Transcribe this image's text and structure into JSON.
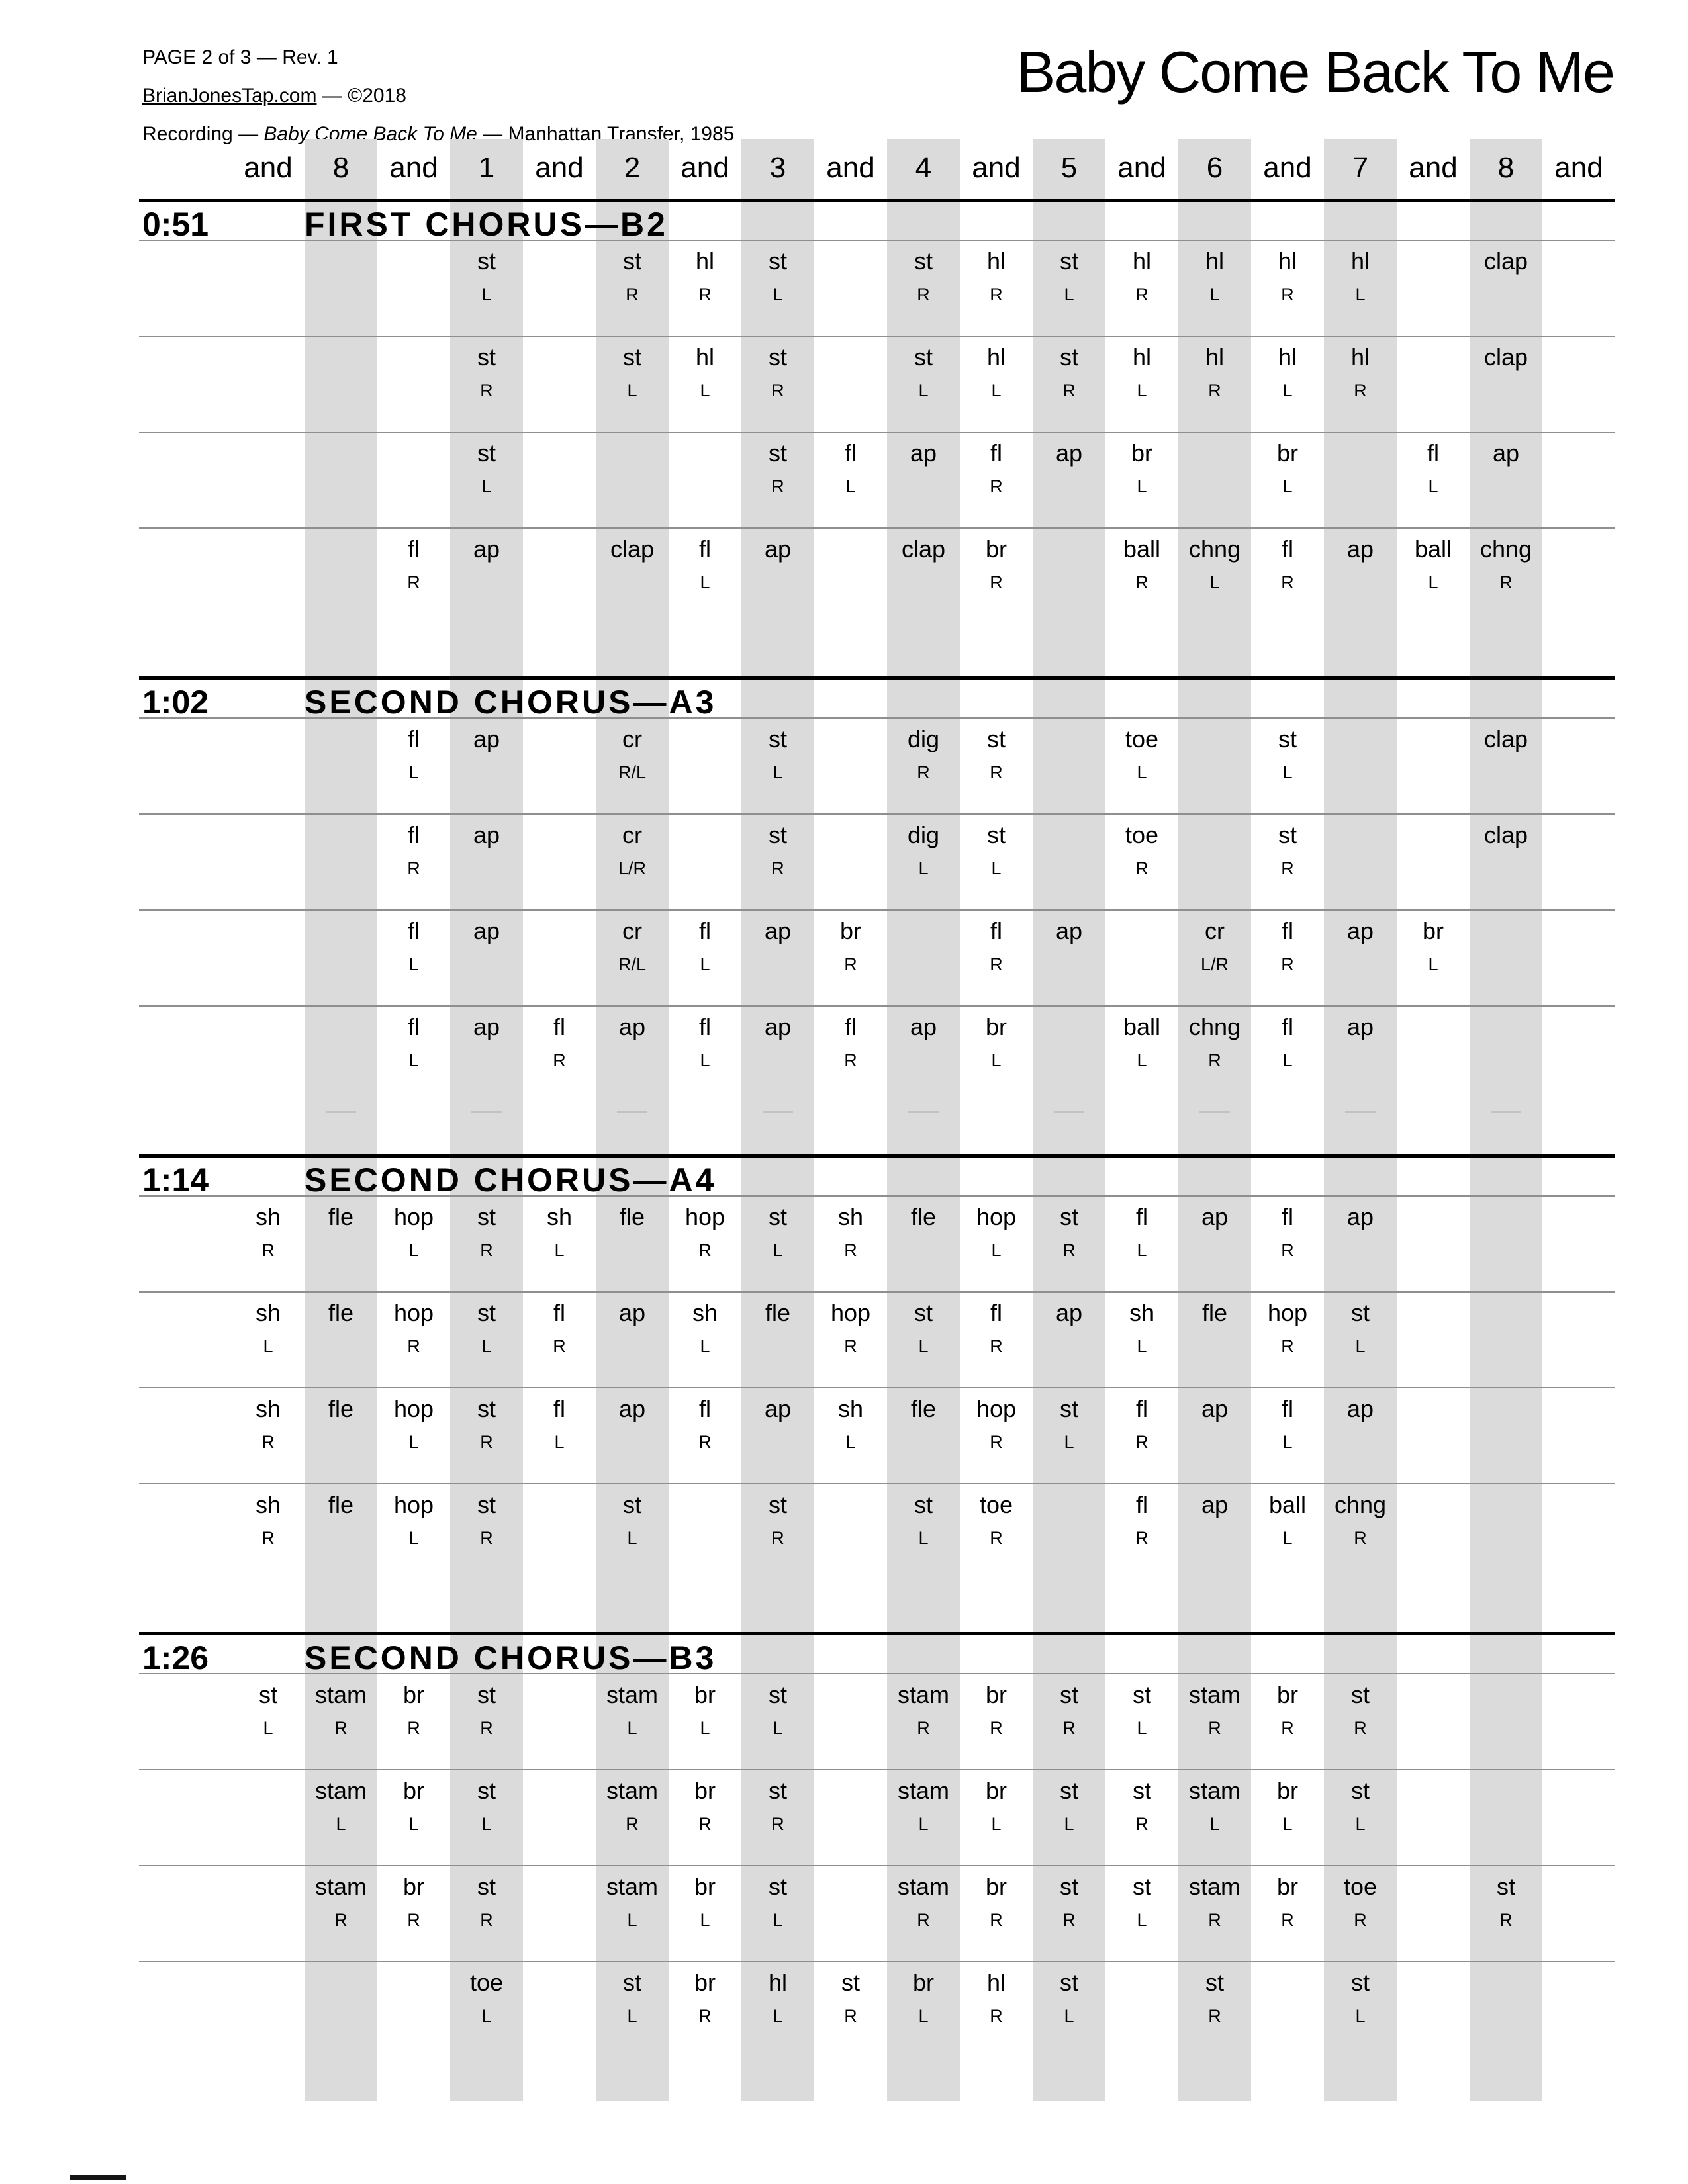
{
  "header": {
    "line1": "PAGE 2 of 3 — Rev. 1",
    "site": "BrianJonesTap.com",
    "copyright_suffix": " — ©2018",
    "recording_label": "Recording — ",
    "recording_title": "Baby Come Back To Me",
    "recording_suffix": " — Manhattan Transfer, 1985",
    "title": "Baby Come Back To Me"
  },
  "colors": {
    "stripe": "#dbdbdb",
    "thin_rule": "#8f8f8f",
    "thick_rule": "#000000",
    "dash": "#c3c3c3",
    "text": "#000000"
  },
  "beat_header": [
    "and",
    "8",
    "and",
    "1",
    "and",
    "2",
    "and",
    "3",
    "and",
    "4",
    "and",
    "5",
    "and",
    "6",
    "and",
    "7",
    "and",
    "8",
    "and"
  ],
  "stripe_columns": [
    1,
    3,
    5,
    7,
    9,
    11,
    13,
    15,
    17
  ],
  "sections": [
    {
      "time": "0:51",
      "name": "FIRST CHORUS—B2",
      "dashes": false,
      "rows": [
        [
          [
            3,
            "st",
            "L"
          ],
          [
            5,
            "st",
            "R"
          ],
          [
            6,
            "hl",
            "R"
          ],
          [
            7,
            "st",
            "L"
          ],
          [
            9,
            "st",
            "R"
          ],
          [
            10,
            "hl",
            "R"
          ],
          [
            11,
            "st",
            "L"
          ],
          [
            12,
            "hl",
            "R"
          ],
          [
            13,
            "hl",
            "L"
          ],
          [
            14,
            "hl",
            "R"
          ],
          [
            15,
            "hl",
            "L"
          ],
          [
            17,
            "clap",
            ""
          ]
        ],
        [
          [
            3,
            "st",
            "R"
          ],
          [
            5,
            "st",
            "L"
          ],
          [
            6,
            "hl",
            "L"
          ],
          [
            7,
            "st",
            "R"
          ],
          [
            9,
            "st",
            "L"
          ],
          [
            10,
            "hl",
            "L"
          ],
          [
            11,
            "st",
            "R"
          ],
          [
            12,
            "hl",
            "L"
          ],
          [
            13,
            "hl",
            "R"
          ],
          [
            14,
            "hl",
            "L"
          ],
          [
            15,
            "hl",
            "R"
          ],
          [
            17,
            "clap",
            ""
          ]
        ],
        [
          [
            3,
            "st",
            "L"
          ],
          [
            7,
            "st",
            "R"
          ],
          [
            8,
            "fl",
            "L"
          ],
          [
            9,
            "ap",
            ""
          ],
          [
            10,
            "fl",
            "R"
          ],
          [
            11,
            "ap",
            ""
          ],
          [
            12,
            "br",
            "L"
          ],
          [
            14,
            "br",
            "L"
          ],
          [
            16,
            "fl",
            "L"
          ],
          [
            17,
            "ap",
            ""
          ]
        ],
        [
          [
            2,
            "fl",
            "R"
          ],
          [
            3,
            "ap",
            ""
          ],
          [
            5,
            "clap",
            ""
          ],
          [
            6,
            "fl",
            "L"
          ],
          [
            7,
            "ap",
            ""
          ],
          [
            9,
            "clap",
            ""
          ],
          [
            10,
            "br",
            "R"
          ],
          [
            12,
            "ball",
            "R"
          ],
          [
            13,
            "chng",
            "L"
          ],
          [
            14,
            "fl",
            "R"
          ],
          [
            15,
            "ap",
            ""
          ],
          [
            16,
            "ball",
            "L"
          ],
          [
            17,
            "chng",
            "R"
          ]
        ]
      ]
    },
    {
      "time": "1:02",
      "name": "SECOND CHORUS—A3",
      "dashes": true,
      "rows": [
        [
          [
            2,
            "fl",
            "L"
          ],
          [
            3,
            "ap",
            ""
          ],
          [
            5,
            "cr",
            "R/L"
          ],
          [
            7,
            "st",
            "L"
          ],
          [
            9,
            "dig",
            "R"
          ],
          [
            10,
            "st",
            "R"
          ],
          [
            12,
            "toe",
            "L"
          ],
          [
            14,
            "st",
            "L"
          ],
          [
            17,
            "clap",
            ""
          ]
        ],
        [
          [
            2,
            "fl",
            "R"
          ],
          [
            3,
            "ap",
            ""
          ],
          [
            5,
            "cr",
            "L/R"
          ],
          [
            7,
            "st",
            "R"
          ],
          [
            9,
            "dig",
            "L"
          ],
          [
            10,
            "st",
            "L"
          ],
          [
            12,
            "toe",
            "R"
          ],
          [
            14,
            "st",
            "R"
          ],
          [
            17,
            "clap",
            ""
          ]
        ],
        [
          [
            2,
            "fl",
            "L"
          ],
          [
            3,
            "ap",
            ""
          ],
          [
            5,
            "cr",
            "R/L"
          ],
          [
            6,
            "fl",
            "L"
          ],
          [
            7,
            "ap",
            ""
          ],
          [
            8,
            "br",
            "R"
          ],
          [
            10,
            "fl",
            "R"
          ],
          [
            11,
            "ap",
            ""
          ],
          [
            13,
            "cr",
            "L/R"
          ],
          [
            14,
            "fl",
            "R"
          ],
          [
            15,
            "ap",
            ""
          ],
          [
            16,
            "br",
            "L"
          ]
        ],
        [
          [
            2,
            "fl",
            "L"
          ],
          [
            3,
            "ap",
            ""
          ],
          [
            4,
            "fl",
            "R"
          ],
          [
            5,
            "ap",
            ""
          ],
          [
            6,
            "fl",
            "L"
          ],
          [
            7,
            "ap",
            ""
          ],
          [
            8,
            "fl",
            "R"
          ],
          [
            9,
            "ap",
            ""
          ],
          [
            10,
            "br",
            "L"
          ],
          [
            12,
            "ball",
            "L"
          ],
          [
            13,
            "chng",
            "R"
          ],
          [
            14,
            "fl",
            "L"
          ],
          [
            15,
            "ap",
            ""
          ]
        ]
      ]
    },
    {
      "time": "1:14",
      "name": "SECOND CHORUS—A4",
      "dashes": false,
      "rows": [
        [
          [
            0,
            "sh",
            "R"
          ],
          [
            1,
            "fle",
            ""
          ],
          [
            2,
            "hop",
            "L"
          ],
          [
            3,
            "st",
            "R"
          ],
          [
            4,
            "sh",
            "L"
          ],
          [
            5,
            "fle",
            ""
          ],
          [
            6,
            "hop",
            "R"
          ],
          [
            7,
            "st",
            "L"
          ],
          [
            8,
            "sh",
            "R"
          ],
          [
            9,
            "fle",
            ""
          ],
          [
            10,
            "hop",
            "L"
          ],
          [
            11,
            "st",
            "R"
          ],
          [
            12,
            "fl",
            "L"
          ],
          [
            13,
            "ap",
            ""
          ],
          [
            14,
            "fl",
            "R"
          ],
          [
            15,
            "ap",
            ""
          ]
        ],
        [
          [
            0,
            "sh",
            "L"
          ],
          [
            1,
            "fle",
            ""
          ],
          [
            2,
            "hop",
            "R"
          ],
          [
            3,
            "st",
            "L"
          ],
          [
            4,
            "fl",
            "R"
          ],
          [
            5,
            "ap",
            ""
          ],
          [
            6,
            "sh",
            "L"
          ],
          [
            7,
            "fle",
            ""
          ],
          [
            8,
            "hop",
            "R"
          ],
          [
            9,
            "st",
            "L"
          ],
          [
            10,
            "fl",
            "R"
          ],
          [
            11,
            "ap",
            ""
          ],
          [
            12,
            "sh",
            "L"
          ],
          [
            13,
            "fle",
            ""
          ],
          [
            14,
            "hop",
            "R"
          ],
          [
            15,
            "st",
            "L"
          ]
        ],
        [
          [
            0,
            "sh",
            "R"
          ],
          [
            1,
            "fle",
            ""
          ],
          [
            2,
            "hop",
            "L"
          ],
          [
            3,
            "st",
            "R"
          ],
          [
            4,
            "fl",
            "L"
          ],
          [
            5,
            "ap",
            ""
          ],
          [
            6,
            "fl",
            "R"
          ],
          [
            7,
            "ap",
            ""
          ],
          [
            8,
            "sh",
            "L"
          ],
          [
            9,
            "fle",
            ""
          ],
          [
            10,
            "hop",
            "R"
          ],
          [
            11,
            "st",
            "L"
          ],
          [
            12,
            "fl",
            "R"
          ],
          [
            13,
            "ap",
            ""
          ],
          [
            14,
            "fl",
            "L"
          ],
          [
            15,
            "ap",
            ""
          ]
        ],
        [
          [
            0,
            "sh",
            "R"
          ],
          [
            1,
            "fle",
            ""
          ],
          [
            2,
            "hop",
            "L"
          ],
          [
            3,
            "st",
            "R"
          ],
          [
            5,
            "st",
            "L"
          ],
          [
            7,
            "st",
            "R"
          ],
          [
            9,
            "st",
            "L"
          ],
          [
            10,
            "toe",
            "R"
          ],
          [
            12,
            "fl",
            "R"
          ],
          [
            13,
            "ap",
            ""
          ],
          [
            14,
            "ball",
            "L"
          ],
          [
            15,
            "chng",
            "R"
          ]
        ]
      ]
    },
    {
      "time": "1:26",
      "name": "SECOND CHORUS—B3",
      "dashes": false,
      "rows": [
        [
          [
            0,
            "st",
            "L"
          ],
          [
            1,
            "stam",
            "R"
          ],
          [
            2,
            "br",
            "R"
          ],
          [
            3,
            "st",
            "R"
          ],
          [
            5,
            "stam",
            "L"
          ],
          [
            6,
            "br",
            "L"
          ],
          [
            7,
            "st",
            "L"
          ],
          [
            9,
            "stam",
            "R"
          ],
          [
            10,
            "br",
            "R"
          ],
          [
            11,
            "st",
            "R"
          ],
          [
            12,
            "st",
            "L"
          ],
          [
            13,
            "stam",
            "R"
          ],
          [
            14,
            "br",
            "R"
          ],
          [
            15,
            "st",
            "R"
          ]
        ],
        [
          [
            1,
            "stam",
            "L"
          ],
          [
            2,
            "br",
            "L"
          ],
          [
            3,
            "st",
            "L"
          ],
          [
            5,
            "stam",
            "R"
          ],
          [
            6,
            "br",
            "R"
          ],
          [
            7,
            "st",
            "R"
          ],
          [
            9,
            "stam",
            "L"
          ],
          [
            10,
            "br",
            "L"
          ],
          [
            11,
            "st",
            "L"
          ],
          [
            12,
            "st",
            "R"
          ],
          [
            13,
            "stam",
            "L"
          ],
          [
            14,
            "br",
            "L"
          ],
          [
            15,
            "st",
            "L"
          ]
        ],
        [
          [
            1,
            "stam",
            "R"
          ],
          [
            2,
            "br",
            "R"
          ],
          [
            3,
            "st",
            "R"
          ],
          [
            5,
            "stam",
            "L"
          ],
          [
            6,
            "br",
            "L"
          ],
          [
            7,
            "st",
            "L"
          ],
          [
            9,
            "stam",
            "R"
          ],
          [
            10,
            "br",
            "R"
          ],
          [
            11,
            "st",
            "R"
          ],
          [
            12,
            "st",
            "L"
          ],
          [
            13,
            "stam",
            "R"
          ],
          [
            14,
            "br",
            "R"
          ],
          [
            15,
            "toe",
            "R"
          ],
          [
            17,
            "st",
            "R"
          ]
        ],
        [
          [
            3,
            "toe",
            "L"
          ],
          [
            5,
            "st",
            "L"
          ],
          [
            6,
            "br",
            "R"
          ],
          [
            7,
            "hl",
            "L"
          ],
          [
            8,
            "st",
            "R"
          ],
          [
            9,
            "br",
            "L"
          ],
          [
            10,
            "hl",
            "R"
          ],
          [
            11,
            "st",
            "L"
          ],
          [
            13,
            "st",
            "R"
          ],
          [
            15,
            "st",
            "L"
          ]
        ]
      ]
    }
  ]
}
